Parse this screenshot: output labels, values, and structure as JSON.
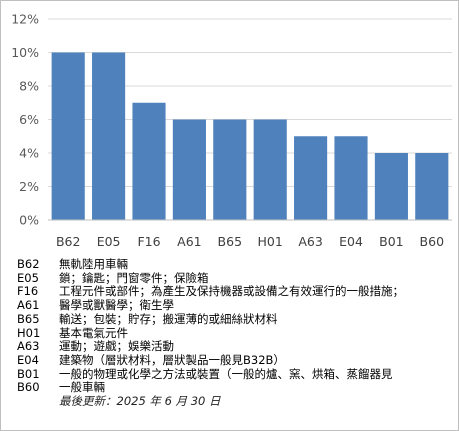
{
  "chart_data": {
    "type": "bar",
    "categories": [
      "B62",
      "E05",
      "F16",
      "A61",
      "B65",
      "H01",
      "A63",
      "E04",
      "B01",
      "B60"
    ],
    "values": [
      10,
      10,
      7,
      6,
      6,
      6,
      5,
      5,
      4,
      4
    ],
    "ylim": [
      0,
      12
    ],
    "yticks": [
      "0%",
      "2%",
      "4%",
      "6%",
      "8%",
      "10%",
      "12%"
    ],
    "bar_color": "#4f81bd",
    "grid": true,
    "legend": [
      {
        "code": "B62",
        "desc": "無軌陸用車輛"
      },
      {
        "code": "E05",
        "desc": "鎖；鑰匙；門窗零件；保險箱"
      },
      {
        "code": "F16",
        "desc": "工程元件或部件；為產生及保持機器或設備之有效運行的一般措施；"
      },
      {
        "code": "A61",
        "desc": "醫學或獸醫學；衛生學"
      },
      {
        "code": "B65",
        "desc": "輸送；包裝；貯存；搬運薄的或細絲狀材料"
      },
      {
        "code": "H01",
        "desc": "基本電氣元件"
      },
      {
        "code": "A63",
        "desc": "運動；遊戲；娛樂活動"
      },
      {
        "code": "E04",
        "desc": "建築物（層狀材料，層狀製品一般見B32B）"
      },
      {
        "code": "B01",
        "desc": "一般的物理或化學之方法或裝置（一般的爐、窯、烘箱、蒸餾器見"
      },
      {
        "code": "B60",
        "desc": "一般車輛"
      }
    ],
    "updated": "最後更新：2025 年 6 月 30 日"
  }
}
